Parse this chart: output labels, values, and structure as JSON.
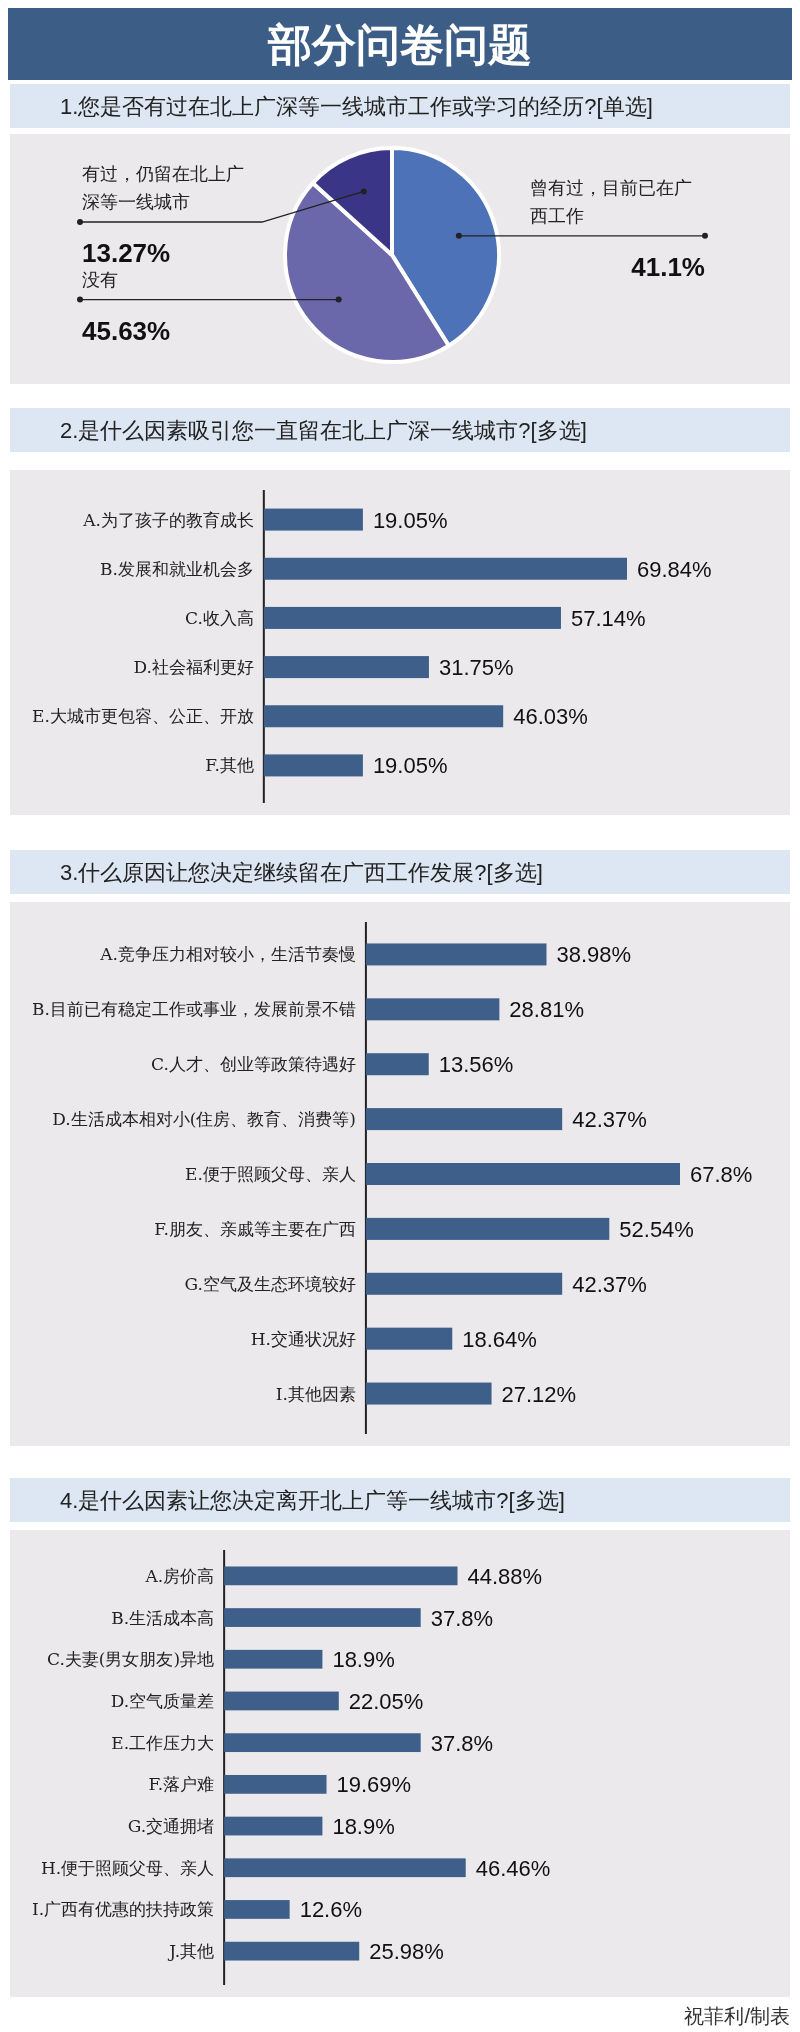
{
  "chart_data": [
    {
      "type": "pie",
      "title": "部分问卷问题",
      "subtitle": "1.您是否有过在北上广深等一线城市工作或学习的经历?[单选]",
      "categories": [
        "曾有过，目前已在广西工作",
        "没有",
        "有过，仍留在北上广深等一线城市"
      ],
      "values": [
        41.1,
        45.63,
        13.27
      ],
      "colors": [
        "#4d72b8",
        "#6a68aa",
        "#3b3587"
      ],
      "value_labels": [
        "41.1%",
        "45.63%",
        "13.27%"
      ]
    },
    {
      "type": "bar",
      "orientation": "horizontal",
      "title": "2.是什么因素吸引您一直留在北上广深一线城市?[多选]",
      "color": "#3d5f8a",
      "categories": [
        "A.为了孩子的教育成长",
        "B.发展和就业机会多",
        "C.收入高",
        "D.社会福利更好",
        "E.大城市更包容、公正、开放",
        "F.其他"
      ],
      "values": [
        19.05,
        69.84,
        57.14,
        31.75,
        46.03,
        19.05
      ],
      "value_labels": [
        "19.05%",
        "69.84%",
        "57.14%",
        "31.75%",
        "46.03%",
        "19.05%"
      ]
    },
    {
      "type": "bar",
      "orientation": "horizontal",
      "title": "3.什么原因让您决定继续留在广西工作发展?[多选]",
      "color": "#3d5f8a",
      "categories": [
        "A.竞争压力相对较小，生活节奏慢",
        "B.目前已有稳定工作或事业，发展前景不错",
        "C.人才、创业等政策待遇好",
        "D.生活成本相对小(住房、教育、消费等)",
        "E.便于照顾父母、亲人",
        "F.朋友、亲戚等主要在广西",
        "G.空气及生态环境较好",
        "H.交通状况好",
        "I.其他因素"
      ],
      "values": [
        38.98,
        28.81,
        13.56,
        42.37,
        67.8,
        52.54,
        42.37,
        18.64,
        27.12
      ],
      "value_labels": [
        "38.98%",
        "28.81%",
        "13.56%",
        "42.37%",
        "67.8%",
        "52.54%",
        "42.37%",
        "18.64%",
        "27.12%"
      ]
    },
    {
      "type": "bar",
      "orientation": "horizontal",
      "title": "4.是什么因素让您决定离开北上广等一线城市?[多选]",
      "color": "#3d5f8a",
      "categories": [
        "A.房价高",
        "B.生活成本高",
        "C.夫妻(男女朋友)异地",
        "D.空气质量差",
        "E.工作压力大",
        "F.落户难",
        "G.交通拥堵",
        "H.便于照顾父母、亲人",
        "I.广西有优惠的扶持政策",
        "J.其他"
      ],
      "values": [
        44.88,
        37.8,
        18.9,
        22.05,
        37.8,
        19.69,
        18.9,
        46.46,
        12.6,
        25.98
      ],
      "value_labels": [
        "44.88%",
        "37.8%",
        "18.9%",
        "22.05%",
        "37.8%",
        "19.69%",
        "18.9%",
        "46.46%",
        "12.6%",
        "25.98%"
      ],
      "annotations": [
        "祝菲利/制表"
      ]
    }
  ]
}
